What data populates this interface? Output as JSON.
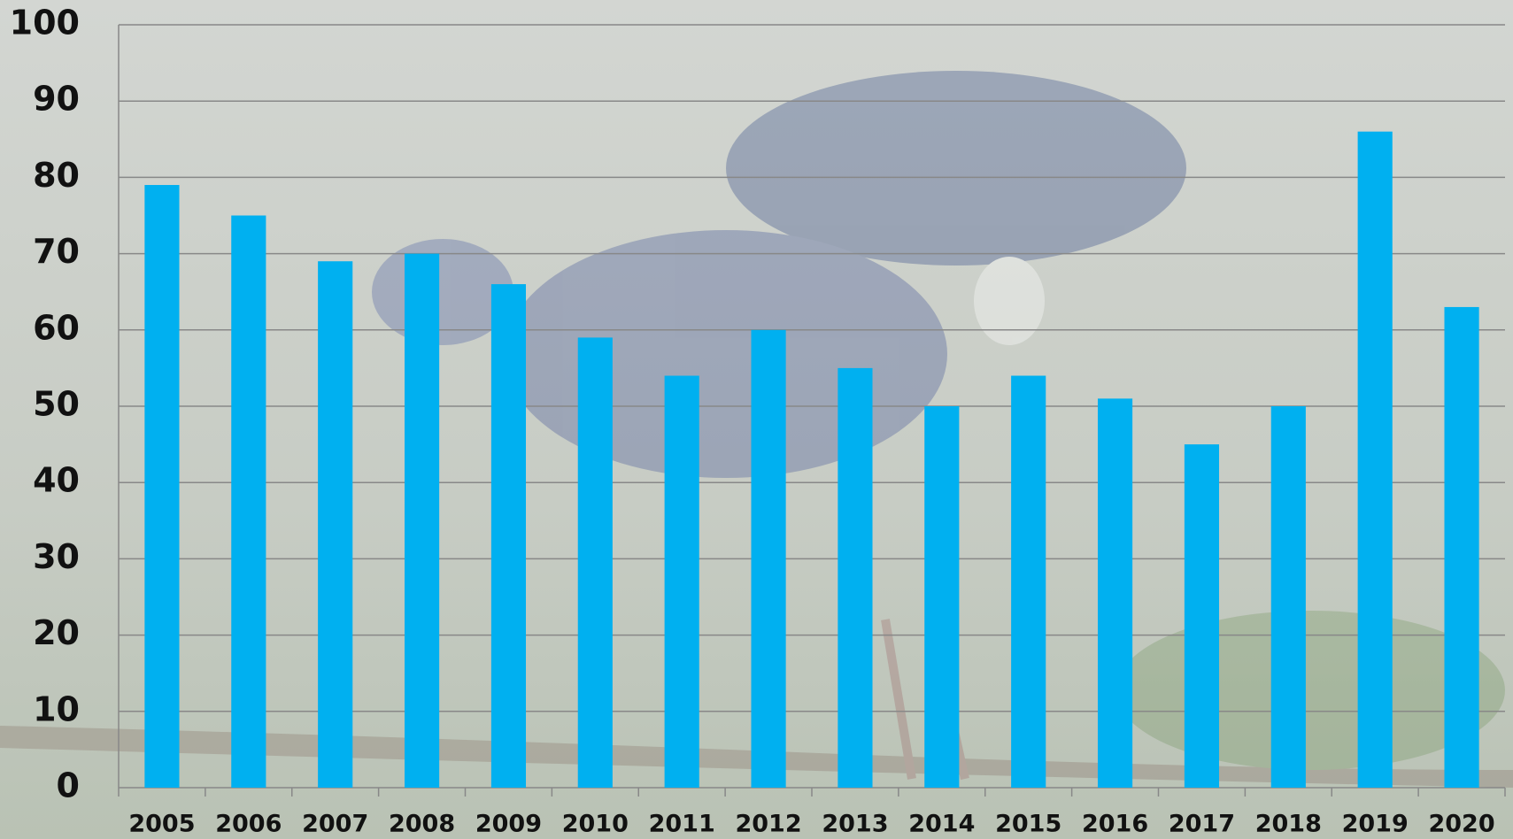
{
  "chart_data": {
    "type": "bar",
    "categories": [
      "2005",
      "2006",
      "2007",
      "2008",
      "2009",
      "2010",
      "2011",
      "2012",
      "2013",
      "2014",
      "2015",
      "2016",
      "2017",
      "2018",
      "2019",
      "2020"
    ],
    "values": [
      79,
      75,
      69,
      70,
      66,
      59,
      54,
      60,
      55,
      50,
      54,
      51,
      45,
      50,
      86,
      63
    ],
    "color": "#00b0f0",
    "ylim": [
      0,
      100
    ],
    "yticks": [
      0,
      10,
      20,
      30,
      40,
      50,
      60,
      70,
      80,
      90,
      100
    ],
    "grid": true
  }
}
